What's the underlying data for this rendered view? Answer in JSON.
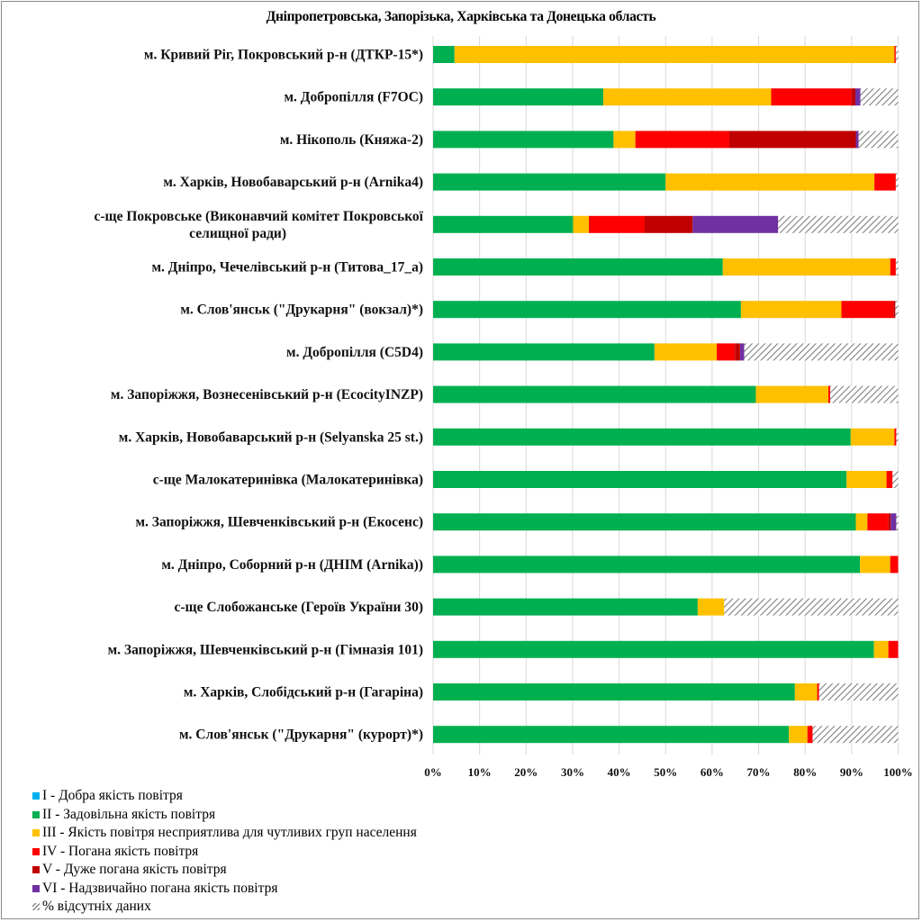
{
  "chart_data": {
    "type": "bar",
    "orientation": "horizontal",
    "stacked": "percent",
    "title": "Дніпропетровська, Запорізька, Харківська та Донецька область",
    "xlabel": "",
    "ylabel": "",
    "xlim": [
      0,
      100
    ],
    "x_ticks": [
      "0%",
      "10%",
      "20%",
      "30%",
      "40%",
      "50%",
      "60%",
      "70%",
      "80%",
      "90%",
      "100%"
    ],
    "grid": "vertical",
    "legend_position": "bottom-left",
    "categories": [
      "м. Кривий Ріг, Покровський р-н (ДТКР-15*)",
      "м. Добропілля (F7OC)",
      "м. Нікополь (Княжа-2)",
      "м. Харків, Новобаварський р-н (Arnika4)",
      "с-ще Покровське (Виконавчий комітет Покровської селищної ради)",
      "м. Дніпро, Чечелівський р-н (Титова_17_а)",
      "м. Слов'янськ (\"Друкарня\" (вокзал)*)",
      "м. Добропілля (C5D4)",
      "м. Запоріжжя, Вознесенівський р-н (EcocityINZP)",
      "м. Харків, Новобаварський р-н (Selyanska 25 st.)",
      "с-ще Малокатеринівка (Малокатеринівка)",
      "м. Запоріжжя, Шевченківський р-н (Екосенс)",
      "м. Дніпро, Соборний р-н (ДНІМ (Arnika))",
      "с-ще Слобожанське (Героїв України 30)",
      "м. Запоріжжя, Шевченківський р-н (Гімназія 101)",
      "м. Харків, Слобідський р-н (Гагаріна)",
      "м. Слов'янськ (\"Друкарня\" (курорт)*)"
    ],
    "category_label_lines": [
      [
        "м. Кривий Ріг, Покровський р-н (ДТКР-15*)"
      ],
      [
        "м. Добропілля (F7OC)"
      ],
      [
        "м. Нікополь (Княжа-2)"
      ],
      [
        "м. Харків, Новобаварський р-н (Arnika4)"
      ],
      [
        "с-ще Покровське (Виконавчий комітет Покровської",
        "селищної ради)"
      ],
      [
        "м. Дніпро, Чечелівський р-н (Титова_17_а)"
      ],
      [
        "м. Слов'янськ (\"Друкарня\" (вокзал)*)"
      ],
      [
        "м. Добропілля (C5D4)"
      ],
      [
        "м. Запоріжжя, Вознесенівський р-н (EcocityINZP)"
      ],
      [
        "м. Харків, Новобаварський р-н (Selyanska 25 st.)"
      ],
      [
        "с-ще Малокатеринівка (Малокатеринівка)"
      ],
      [
        "м. Запоріжжя, Шевченківський р-н (Екосенс)"
      ],
      [
        "м. Дніпро, Соборний р-н (ДНІМ (Arnika))"
      ],
      [
        "с-ще Слобожанське (Героїв України 30)"
      ],
      [
        "м. Запоріжжя, Шевченківський р-н (Гімназія 101)"
      ],
      [
        "м. Харків, Слобідський р-н (Гагаріна)"
      ],
      [
        "м. Слов'янськ (\"Друкарня\" (курорт)*)"
      ]
    ],
    "series": [
      {
        "name": "I - Добра якість повітря",
        "color": "#00B0F0",
        "values": [
          0,
          0,
          0,
          0,
          0,
          0,
          0,
          0,
          0,
          0,
          0,
          0,
          0,
          0,
          0,
          0,
          0
        ]
      },
      {
        "name": "II - Задовільна якість повітря",
        "color": "#00B050",
        "values": [
          4.6,
          36.6,
          38.8,
          50.0,
          30.1,
          62.3,
          66.2,
          47.6,
          69.4,
          89.8,
          88.9,
          90.9,
          91.8,
          56.9,
          94.8,
          77.8,
          76.5
        ]
      },
      {
        "name": "III - Якість повітря несприятлива для чутливих груп населення",
        "color": "#FFC000",
        "values": [
          94.6,
          36.1,
          4.7,
          44.9,
          3.4,
          36.0,
          21.6,
          13.4,
          15.6,
          9.4,
          8.6,
          2.5,
          6.5,
          5.7,
          3.1,
          4.8,
          4.0
        ]
      },
      {
        "name": "IV - Погана якість повітря",
        "color": "#FF0000",
        "values": [
          0.3,
          17.2,
          20.2,
          4.6,
          12.0,
          1.2,
          11.2,
          3.9,
          0.4,
          0.4,
          1.3,
          4.5,
          1.7,
          0,
          2.1,
          0.4,
          1.1
        ]
      },
      {
        "name": "V - Дуже погана якість повітря",
        "color": "#C00000",
        "values": [
          0,
          0.9,
          27.2,
          0,
          10.3,
          0,
          0.4,
          1.1,
          0,
          0,
          0,
          0.5,
          0,
          0,
          0,
          0,
          0
        ]
      },
      {
        "name": "VI - Надзвичайно погана якість повітря",
        "color": "#7030A0",
        "values": [
          0,
          1.1,
          0.6,
          0,
          18.4,
          0,
          0,
          0.9,
          0,
          0,
          0,
          1.2,
          0,
          0,
          0,
          0,
          0
        ]
      },
      {
        "name": "% відсутніх даних",
        "color": "hatch",
        "values": [
          0.5,
          8.1,
          8.5,
          0.5,
          25.8,
          0.5,
          0.6,
          33.1,
          14.6,
          0.4,
          1.2,
          0.4,
          0,
          37.4,
          0,
          17.0,
          18.4
        ]
      }
    ]
  }
}
